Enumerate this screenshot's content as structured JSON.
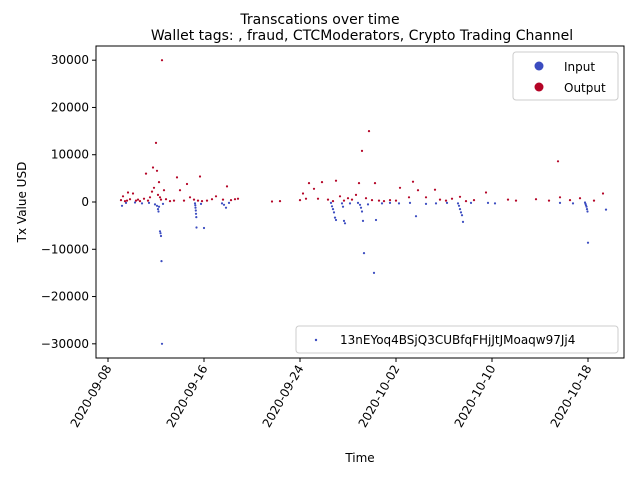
{
  "chart_data": {
    "type": "scatter",
    "suptitle": "Transcations over time",
    "title": "Wallet tags: , fraud, CTCModerators, Crypto Trading Channel",
    "xlabel": "Time",
    "ylabel": "Tx Value USD",
    "x_range": [
      "2020-09-07",
      "2020-10-21"
    ],
    "y_range": [
      -33000,
      33000
    ],
    "y_ticks": [
      30000,
      20000,
      10000,
      0,
      -10000,
      -20000,
      -30000
    ],
    "y_tick_labels": [
      "30000",
      "20000",
      "10000",
      "0",
      "−10000",
      "−20000",
      "−30000"
    ],
    "x_ticks": [
      "2020-09-08",
      "2020-09-16",
      "2020-09-24",
      "2020-10-02",
      "2020-10-10",
      "2020-10-18"
    ],
    "x_tick_labels": [
      "2020-09-08",
      "2020-09-16",
      "2020-09-24",
      "2020-10-02",
      "2020-10-10",
      "2020-10-18"
    ],
    "grid": false,
    "legends": [
      {
        "placement": "top-right",
        "entries": [
          {
            "name": "Input",
            "color": "#3b4cc0"
          },
          {
            "name": "Output",
            "color": "#b40426"
          }
        ]
      },
      {
        "placement": "bottom-right",
        "entries": [
          {
            "name": "13nEYoq4BSjQ3CUBfqFHjJtJMoaqw97Jj4",
            "color": "#3b4cc0"
          }
        ]
      }
    ],
    "series": [
      {
        "name": "Input",
        "color": "#3b4cc0",
        "points": [
          [
            "2020-09-09 04:00",
            -800
          ],
          [
            "2020-09-09 12:00",
            -200
          ],
          [
            "2020-09-10 06:00",
            -100
          ],
          [
            "2020-09-10 20:00",
            -300
          ],
          [
            "2020-09-11 10:00",
            -200
          ],
          [
            "2020-09-11 22:00",
            -500
          ],
          [
            "2020-09-12 02:00",
            -800
          ],
          [
            "2020-09-12 04:00",
            -1500
          ],
          [
            "2020-09-12 05:00",
            -2000
          ],
          [
            "2020-09-12 06:00",
            -1000
          ],
          [
            "2020-09-12 08:00",
            -6200
          ],
          [
            "2020-09-12 09:00",
            -6600
          ],
          [
            "2020-09-12 10:00",
            -7200
          ],
          [
            "2020-09-12 11:00",
            -12500
          ],
          [
            "2020-09-12 12:00",
            -30000
          ],
          [
            "2020-09-12 14:00",
            -400
          ],
          [
            "2020-09-15 06:00",
            -300
          ],
          [
            "2020-09-15 06:30",
            -700
          ],
          [
            "2020-09-15 07:00",
            -1200
          ],
          [
            "2020-09-15 07:30",
            -1800
          ],
          [
            "2020-09-15 08:00",
            -2500
          ],
          [
            "2020-09-15 08:30",
            -3200
          ],
          [
            "2020-09-15 09:00",
            -5400
          ],
          [
            "2020-09-15 18:00",
            -400
          ],
          [
            "2020-09-16 00:00",
            -5500
          ],
          [
            "2020-09-17 12:00",
            -300
          ],
          [
            "2020-09-17 16:00",
            -600
          ],
          [
            "2020-09-17 20:00",
            -1200
          ],
          [
            "2020-09-18 02:00",
            -200
          ],
          [
            "2020-09-26 14:00",
            -200
          ],
          [
            "2020-09-26 16:00",
            -900
          ],
          [
            "2020-09-26 18:00",
            -1500
          ],
          [
            "2020-09-26 20:00",
            -2200
          ],
          [
            "2020-09-26 22:00",
            -3300
          ],
          [
            "2020-09-27 00:00",
            -3800
          ],
          [
            "2020-09-27 12:00",
            -300
          ],
          [
            "2020-09-27 14:00",
            -1000
          ],
          [
            "2020-09-27 16:00",
            -4000
          ],
          [
            "2020-09-27 18:00",
            -4500
          ],
          [
            "2020-09-28 04:00",
            -300
          ],
          [
            "2020-09-28 20:00",
            -200
          ],
          [
            "2020-09-29 00:00",
            -600
          ],
          [
            "2020-09-29 02:00",
            -1200
          ],
          [
            "2020-09-29 04:00",
            -2000
          ],
          [
            "2020-09-29 06:00",
            -4000
          ],
          [
            "2020-09-29 08:00",
            -10800
          ],
          [
            "2020-09-29 16:00",
            -500
          ],
          [
            "2020-09-30 04:00",
            -15000
          ],
          [
            "2020-09-30 08:00",
            -3800
          ],
          [
            "2020-09-30 20:00",
            -300
          ],
          [
            "2020-10-01 12:00",
            -200
          ],
          [
            "2020-10-02 06:00",
            -300
          ],
          [
            "2020-10-03 04:00",
            -200
          ],
          [
            "2020-10-03 16:00",
            -3000
          ],
          [
            "2020-10-04 12:00",
            -400
          ],
          [
            "2020-10-05 08:00",
            -300
          ],
          [
            "2020-10-06 06:00",
            -200
          ],
          [
            "2020-10-07 04:00",
            -300
          ],
          [
            "2020-10-07 06:00",
            -800
          ],
          [
            "2020-10-07 08:00",
            -1500
          ],
          [
            "2020-10-07 10:00",
            -2200
          ],
          [
            "2020-10-07 12:00",
            -2800
          ],
          [
            "2020-10-07 14:00",
            -4200
          ],
          [
            "2020-10-08 06:00",
            -200
          ],
          [
            "2020-10-09 16:00",
            -200
          ],
          [
            "2020-10-10 06:00",
            -300
          ],
          [
            "2020-10-15 16:00",
            -200
          ],
          [
            "2020-10-16 18:00",
            -300
          ],
          [
            "2020-10-17 18:00",
            -100
          ],
          [
            "2020-10-17 19:00",
            -400
          ],
          [
            "2020-10-17 20:00",
            -700
          ],
          [
            "2020-10-17 21:00",
            -1000
          ],
          [
            "2020-10-17 22:00",
            -1500
          ],
          [
            "2020-10-17 23:00",
            -2000
          ],
          [
            "2020-10-18 00:00",
            -8600
          ],
          [
            "2020-10-19 12:00",
            -1600
          ]
        ]
      },
      {
        "name": "Output",
        "color": "#b40426",
        "points": [
          [
            "2020-09-09 02:00",
            400
          ],
          [
            "2020-09-09 06:00",
            1200
          ],
          [
            "2020-09-09 10:00",
            200
          ],
          [
            "2020-09-09 14:00",
            300
          ],
          [
            "2020-09-09 16:00",
            2000
          ],
          [
            "2020-09-09 20:00",
            600
          ],
          [
            "2020-09-10 02:00",
            1800
          ],
          [
            "2020-09-10 08:00",
            300
          ],
          [
            "2020-09-10 12:00",
            500
          ],
          [
            "2020-09-10 16:00",
            200
          ],
          [
            "2020-09-11 00:00",
            700
          ],
          [
            "2020-09-11 04:00",
            6000
          ],
          [
            "2020-09-11 08:00",
            300
          ],
          [
            "2020-09-11 12:00",
            1000
          ],
          [
            "2020-09-11 16:00",
            2200
          ],
          [
            "2020-09-11 18:00",
            7300
          ],
          [
            "2020-09-11 20:00",
            3000
          ],
          [
            "2020-09-12 00:00",
            12500
          ],
          [
            "2020-09-12 02:00",
            6600
          ],
          [
            "2020-09-12 04:00",
            1500
          ],
          [
            "2020-09-12 06:00",
            4200
          ],
          [
            "2020-09-12 08:00",
            1000
          ],
          [
            "2020-09-12 10:00",
            500
          ],
          [
            "2020-09-12 12:00",
            30000
          ],
          [
            "2020-09-12 16:00",
            2500
          ],
          [
            "2020-09-12 20:00",
            600
          ],
          [
            "2020-09-13 04:00",
            200
          ],
          [
            "2020-09-13 12:00",
            300
          ],
          [
            "2020-09-13 18:00",
            5200
          ],
          [
            "2020-09-14 00:00",
            2500
          ],
          [
            "2020-09-14 08:00",
            300
          ],
          [
            "2020-09-14 14:00",
            3800
          ],
          [
            "2020-09-14 20:00",
            1000
          ],
          [
            "2020-09-15 04:00",
            500
          ],
          [
            "2020-09-15 12:00",
            300
          ],
          [
            "2020-09-15 16:00",
            5400
          ],
          [
            "2020-09-15 20:00",
            200
          ],
          [
            "2020-09-16 06:00",
            300
          ],
          [
            "2020-09-16 16:00",
            600
          ],
          [
            "2020-09-17 00:00",
            1200
          ],
          [
            "2020-09-17 14:00",
            500
          ],
          [
            "2020-09-17 22:00",
            3300
          ],
          [
            "2020-09-18 06:00",
            400
          ],
          [
            "2020-09-18 14:00",
            600
          ],
          [
            "2020-09-18 20:00",
            700
          ],
          [
            "2020-09-21 16:00",
            100
          ],
          [
            "2020-09-22 08:00",
            200
          ],
          [
            "2020-09-24 00:00",
            400
          ],
          [
            "2020-09-24 06:00",
            1800
          ],
          [
            "2020-09-24 12:00",
            700
          ],
          [
            "2020-09-24 18:00",
            4000
          ],
          [
            "2020-09-25 04:00",
            2800
          ],
          [
            "2020-09-25 12:00",
            700
          ],
          [
            "2020-09-25 20:00",
            4200
          ],
          [
            "2020-09-26 08:00",
            500
          ],
          [
            "2020-09-26 18:00",
            200
          ],
          [
            "2020-09-27 00:00",
            4500
          ],
          [
            "2020-09-27 08:00",
            1200
          ],
          [
            "2020-09-27 16:00",
            300
          ],
          [
            "2020-09-28 00:00",
            800
          ],
          [
            "2020-09-28 08:00",
            500
          ],
          [
            "2020-09-28 16:00",
            1500
          ],
          [
            "2020-09-28 22:00",
            4000
          ],
          [
            "2020-09-29 04:00",
            10800
          ],
          [
            "2020-09-29 12:00",
            800
          ],
          [
            "2020-09-29 18:00",
            15000
          ],
          [
            "2020-09-30 00:00",
            400
          ],
          [
            "2020-09-30 06:00",
            4000
          ],
          [
            "2020-09-30 14:00",
            300
          ],
          [
            "2020-10-01 00:00",
            200
          ],
          [
            "2020-10-01 12:00",
            400
          ],
          [
            "2020-10-02 00:00",
            300
          ],
          [
            "2020-10-02 08:00",
            3000
          ],
          [
            "2020-10-03 02:00",
            1000
          ],
          [
            "2020-10-03 10:00",
            4300
          ],
          [
            "2020-10-03 20:00",
            2500
          ],
          [
            "2020-10-04 12:00",
            1000
          ],
          [
            "2020-10-05 06:00",
            2600
          ],
          [
            "2020-10-05 16:00",
            500
          ],
          [
            "2020-10-06 04:00",
            300
          ],
          [
            "2020-10-06 16:00",
            700
          ],
          [
            "2020-10-07 08:00",
            1100
          ],
          [
            "2020-10-07 20:00",
            200
          ],
          [
            "2020-10-08 12:00",
            400
          ],
          [
            "2020-10-09 12:00",
            2000
          ],
          [
            "2020-10-11 08:00",
            500
          ],
          [
            "2020-10-12 00:00",
            300
          ],
          [
            "2020-10-13 16:00",
            600
          ],
          [
            "2020-10-14 18:00",
            300
          ],
          [
            "2020-10-15 12:00",
            8600
          ],
          [
            "2020-10-15 16:00",
            1000
          ],
          [
            "2020-10-16 12:00",
            400
          ],
          [
            "2020-10-17 08:00",
            800
          ],
          [
            "2020-10-18 12:00",
            300
          ],
          [
            "2020-10-19 06:00",
            1800
          ]
        ]
      }
    ]
  }
}
